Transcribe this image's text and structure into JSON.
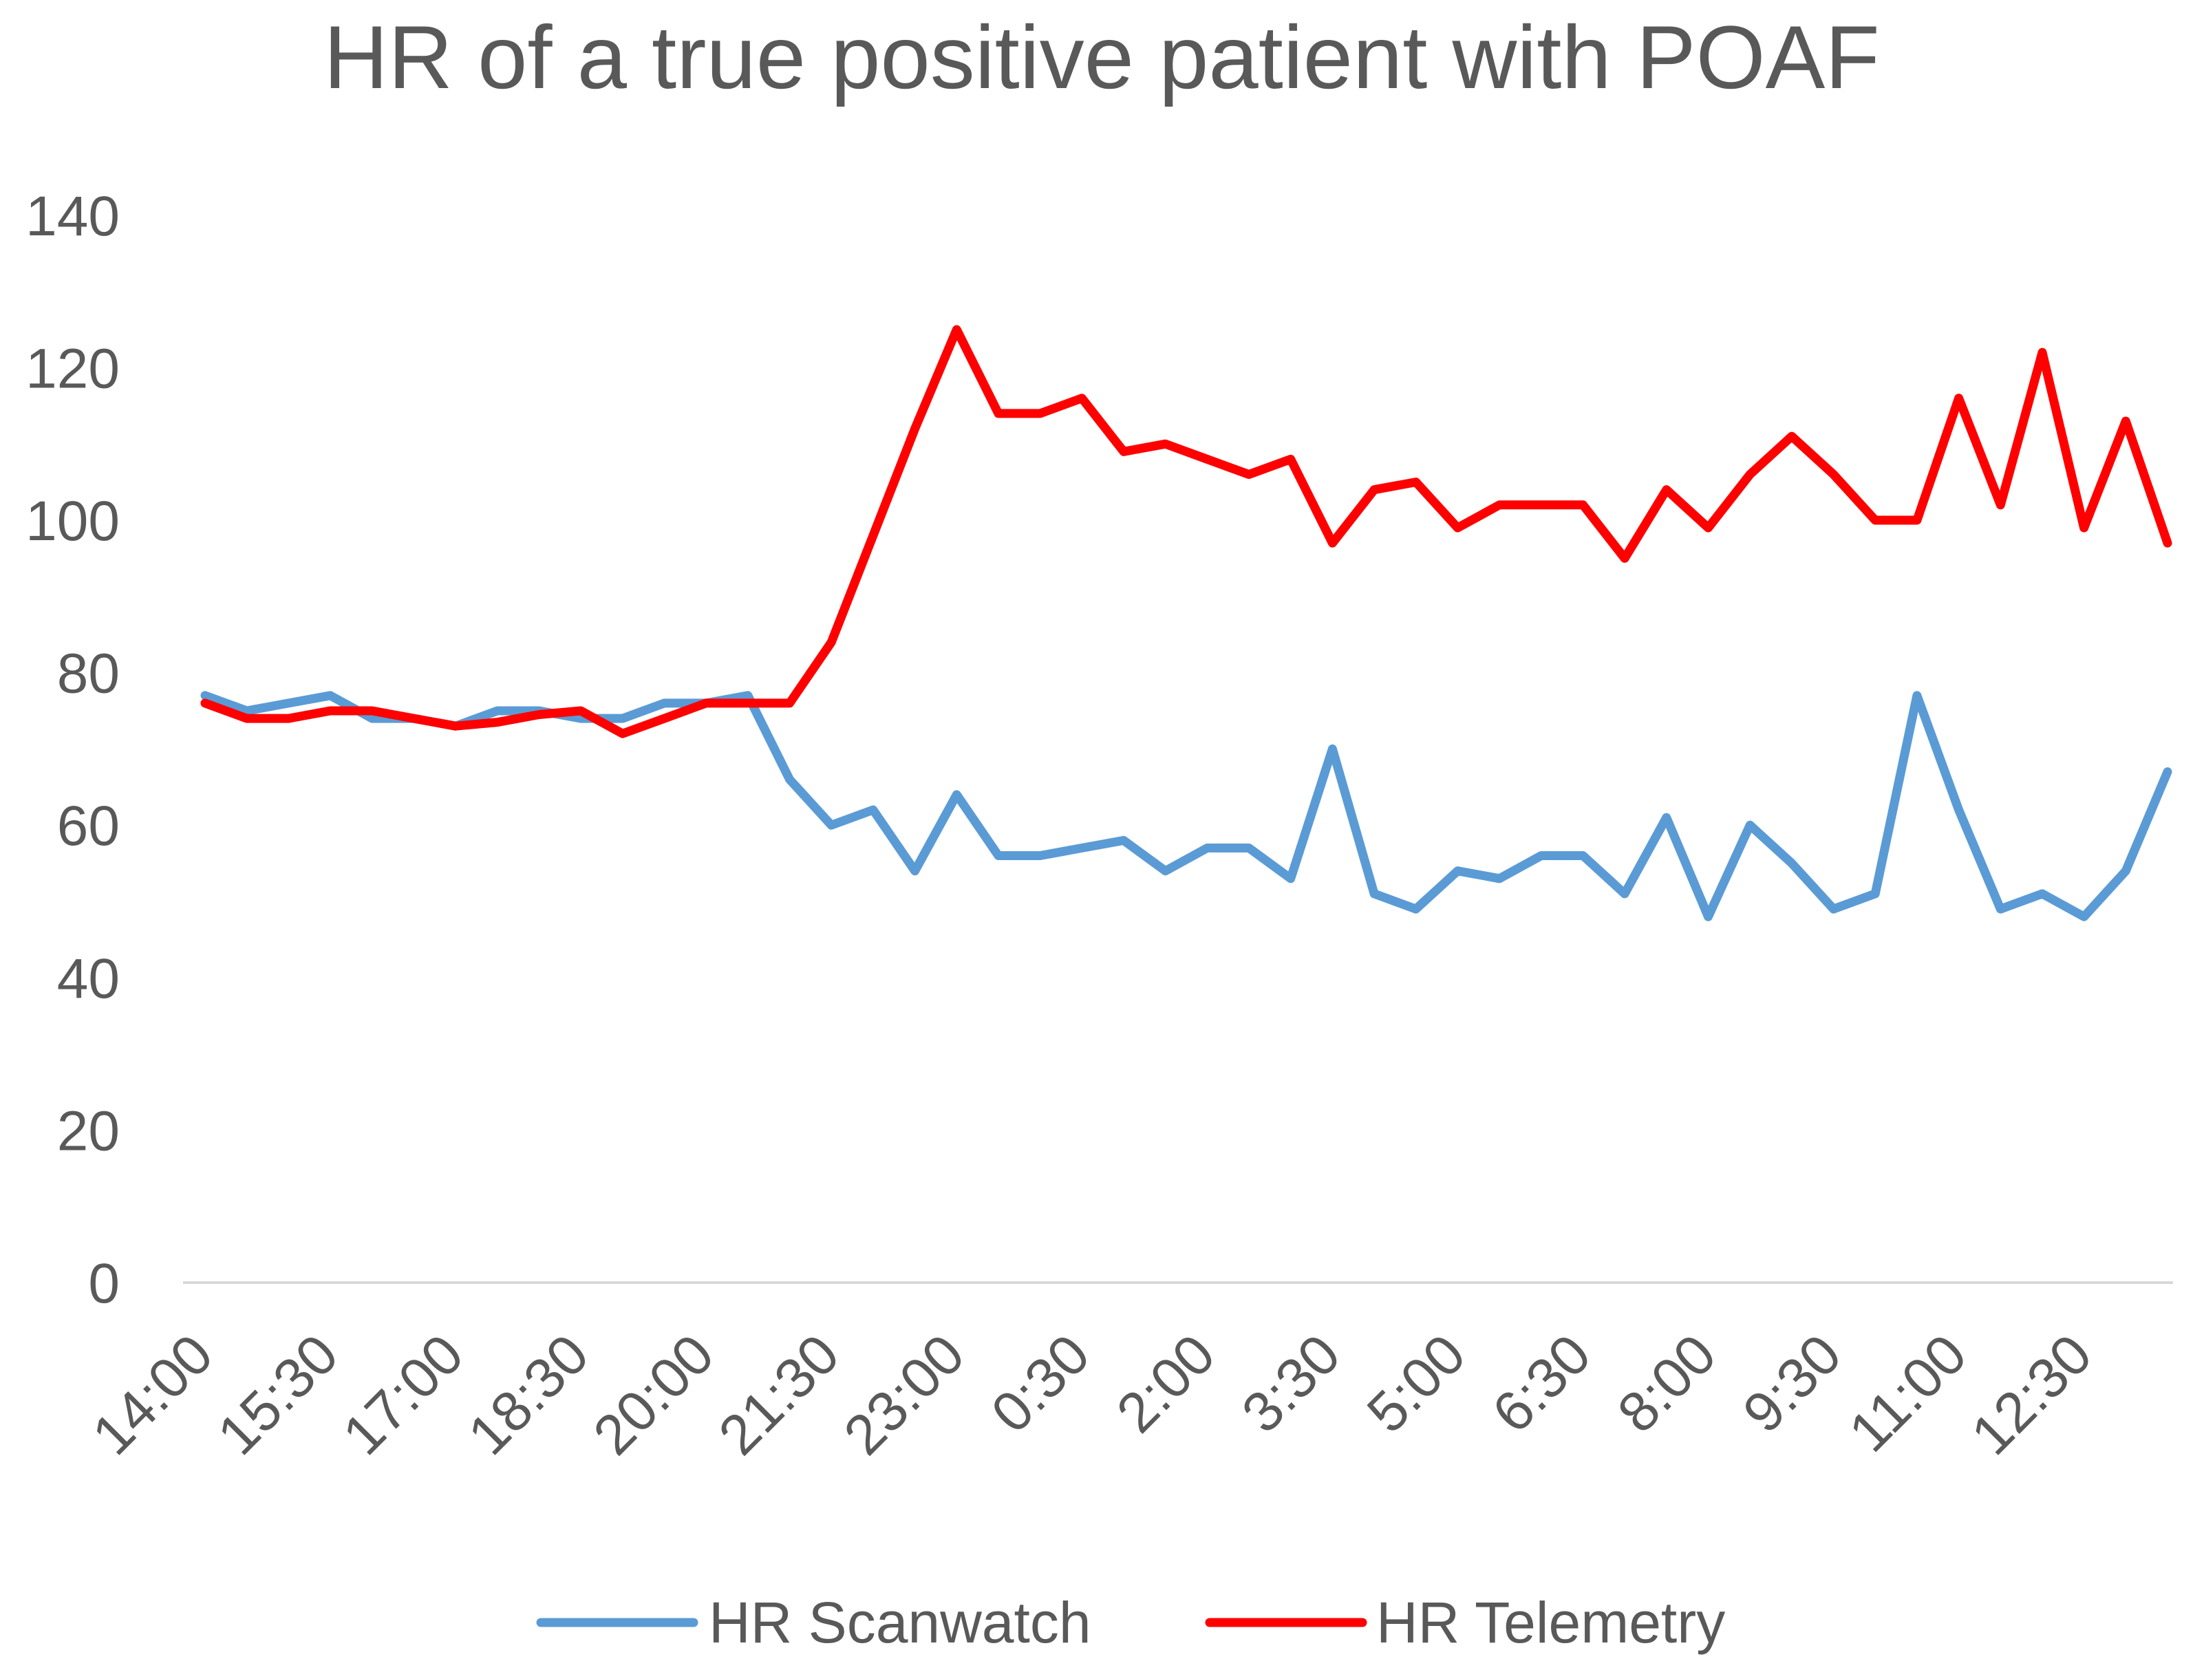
{
  "chart_data": {
    "type": "line",
    "title": "HR of a true positive patient with POAF",
    "xlabel": "",
    "ylabel": "",
    "ylim": [
      0,
      140
    ],
    "yticks": [
      0,
      20,
      40,
      60,
      80,
      100,
      120,
      140
    ],
    "grid": false,
    "legend_position": "bottom",
    "tick_labels": [
      "14:00",
      "15:30",
      "17:00",
      "18:30",
      "20:00",
      "21:30",
      "23:00",
      "0:30",
      "2:00",
      "3:30",
      "5:00",
      "6:30",
      "8:00",
      "9:30",
      "11:00",
      "12:30"
    ],
    "x": [
      "14:00",
      "14:30",
      "15:00",
      "15:30",
      "16:00",
      "16:30",
      "17:00",
      "17:30",
      "18:00",
      "18:30",
      "19:00",
      "19:30",
      "20:00",
      "20:30",
      "21:00",
      "21:30",
      "22:00",
      "22:30",
      "23:00",
      "23:30",
      "0:00",
      "0:30",
      "1:00",
      "1:30",
      "2:00",
      "2:30",
      "3:00",
      "3:30",
      "4:00",
      "4:30",
      "5:00",
      "5:30",
      "6:00",
      "6:30",
      "7:00",
      "7:30",
      "8:00",
      "8:30",
      "9:00",
      "9:30",
      "10:00",
      "10:30",
      "11:00",
      "11:30",
      "12:00",
      "12:30",
      "13:00",
      "13:30"
    ],
    "series": [
      {
        "name": "HR Scanwatch",
        "color": "#5B9BD5",
        "values": [
          77,
          75,
          76,
          77,
          74,
          74,
          73,
          75,
          75,
          74,
          74,
          76,
          76,
          77,
          66,
          60,
          62,
          54,
          64,
          56,
          56,
          57,
          58,
          54,
          57,
          57,
          53,
          70,
          51,
          49,
          54,
          53,
          56,
          56,
          51,
          61,
          48,
          60,
          55,
          49,
          51,
          77,
          62,
          49,
          51,
          48,
          54,
          67
        ]
      },
      {
        "name": "HR Telemetry",
        "color": "#FF0000",
        "values": [
          76,
          74,
          74,
          75,
          75,
          74,
          73,
          73.5,
          74.5,
          75,
          72,
          74,
          76,
          76,
          76,
          84,
          98,
          112,
          125,
          114,
          114,
          116,
          109,
          110,
          108,
          106,
          108,
          97,
          104,
          105,
          99,
          102,
          102,
          102,
          95,
          104,
          99,
          106,
          111,
          106,
          100,
          100,
          116,
          102,
          122,
          99,
          113,
          97
        ]
      }
    ]
  }
}
